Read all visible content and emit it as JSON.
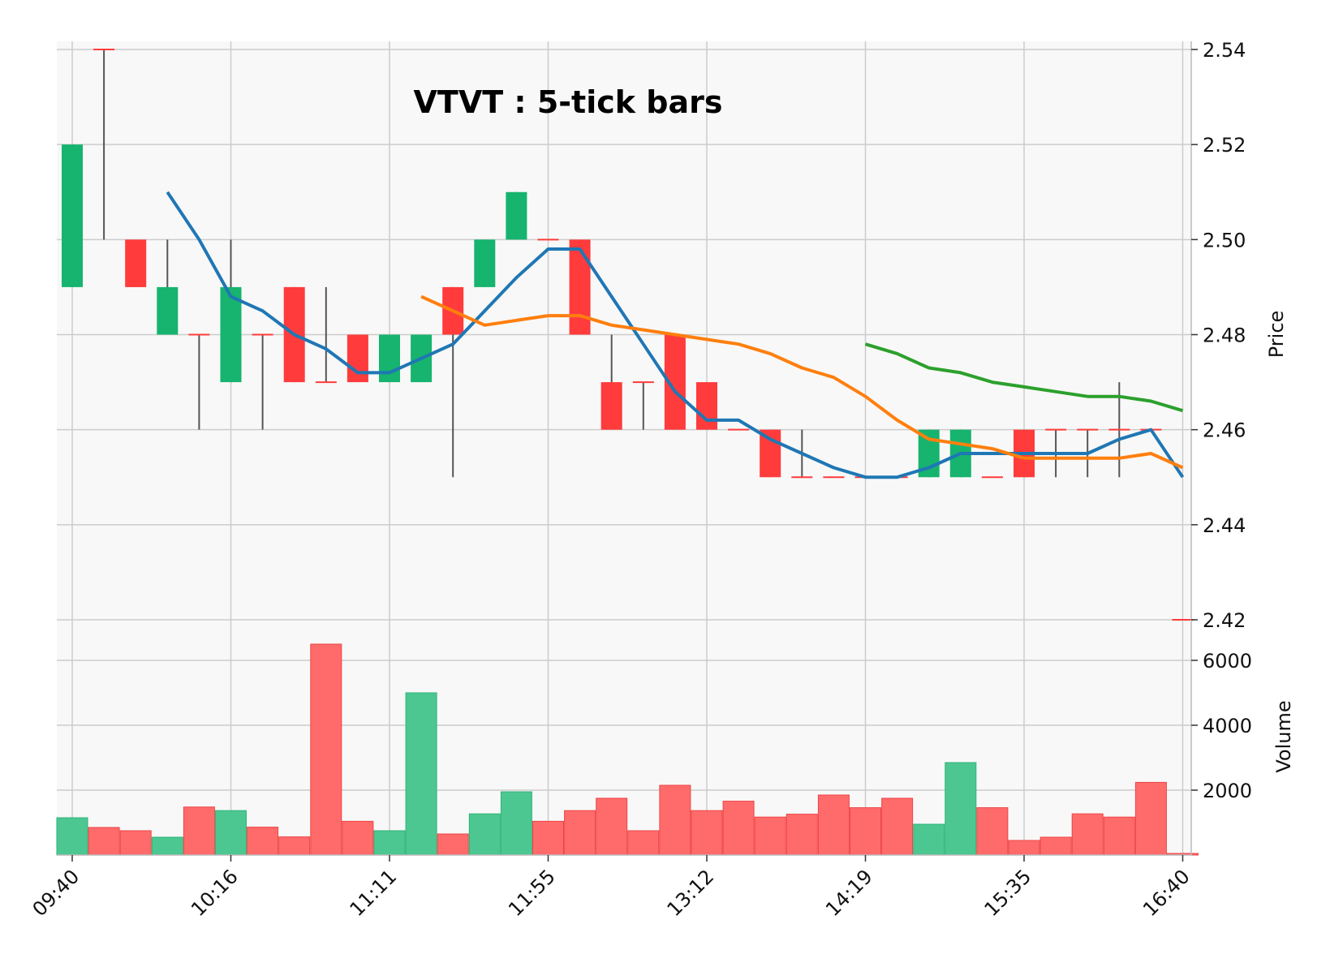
{
  "chart_data": {
    "type": "candlestick",
    "title": "VTVT : 5-tick bars",
    "price_axis": {
      "label": "Price",
      "ylim": [
        2.42,
        2.54
      ],
      "ticks": [
        2.42,
        2.44,
        2.46,
        2.48,
        2.5,
        2.52,
        2.54
      ],
      "tick_labels": [
        "2.42",
        "2.44",
        "2.46",
        "2.48",
        "2.50",
        "2.52",
        "2.54"
      ],
      "position": "right"
    },
    "volume_axis": {
      "label": "Volume",
      "ylim": [
        0,
        6800
      ],
      "ticks": [
        2000,
        4000,
        6000
      ],
      "tick_labels": [
        "2000",
        "4000",
        "6000"
      ],
      "position": "right"
    },
    "x_tick_labels": [
      {
        "bar": 0,
        "label": "09:40"
      },
      {
        "bar": 5,
        "label": "10:16"
      },
      {
        "bar": 10,
        "label": "11:11"
      },
      {
        "bar": 15,
        "label": "11:55"
      },
      {
        "bar": 20,
        "label": "13:12"
      },
      {
        "bar": 25,
        "label": "14:19"
      },
      {
        "bar": 30,
        "label": "15:35"
      },
      {
        "bar": 35,
        "label": "16:40"
      }
    ],
    "grid": true,
    "colors": {
      "up": "#16b46e",
      "down": "#ff3b3b",
      "volume_up": "#4dc791",
      "volume_down": "#ff6b6b",
      "wick": "#555555",
      "ma_short": "#1f77b4",
      "ma_mid": "#ff7f0e",
      "ma_long": "#2ca02c",
      "panel_bg": "#f8f8f8",
      "grid": "#cccccc"
    },
    "bars": [
      {
        "o": 2.49,
        "h": 2.52,
        "l": 2.49,
        "c": 2.52,
        "v": 1150
      },
      {
        "o": 2.54,
        "h": 2.54,
        "l": 2.5,
        "c": 2.54,
        "v": 850
      },
      {
        "o": 2.5,
        "h": 2.5,
        "l": 2.49,
        "c": 2.49,
        "v": 750
      },
      {
        "o": 2.48,
        "h": 2.5,
        "l": 2.48,
        "c": 2.49,
        "v": 550
      },
      {
        "o": 2.48,
        "h": 2.48,
        "l": 2.46,
        "c": 2.48,
        "v": 1480
      },
      {
        "o": 2.47,
        "h": 2.5,
        "l": 2.47,
        "c": 2.49,
        "v": 1370
      },
      {
        "o": 2.48,
        "h": 2.48,
        "l": 2.46,
        "c": 2.48,
        "v": 860
      },
      {
        "o": 2.49,
        "h": 2.49,
        "l": 2.47,
        "c": 2.47,
        "v": 560
      },
      {
        "o": 2.47,
        "h": 2.49,
        "l": 2.47,
        "c": 2.47,
        "v": 6500
      },
      {
        "o": 2.48,
        "h": 2.48,
        "l": 2.47,
        "c": 2.47,
        "v": 1040
      },
      {
        "o": 2.47,
        "h": 2.48,
        "l": 2.47,
        "c": 2.48,
        "v": 750
      },
      {
        "o": 2.47,
        "h": 2.48,
        "l": 2.47,
        "c": 2.48,
        "v": 5000
      },
      {
        "o": 2.49,
        "h": 2.49,
        "l": 2.45,
        "c": 2.48,
        "v": 650
      },
      {
        "o": 2.49,
        "h": 2.5,
        "l": 2.49,
        "c": 2.5,
        "v": 1270
      },
      {
        "o": 2.5,
        "h": 2.51,
        "l": 2.5,
        "c": 2.51,
        "v": 1950
      },
      {
        "o": 2.5,
        "h": 2.5,
        "l": 2.5,
        "c": 2.5,
        "v": 1040
      },
      {
        "o": 2.5,
        "h": 2.5,
        "l": 2.48,
        "c": 2.48,
        "v": 1370
      },
      {
        "o": 2.47,
        "h": 2.48,
        "l": 2.46,
        "c": 2.46,
        "v": 1750
      },
      {
        "o": 2.47,
        "h": 2.47,
        "l": 2.46,
        "c": 2.47,
        "v": 750
      },
      {
        "o": 2.48,
        "h": 2.48,
        "l": 2.46,
        "c": 2.46,
        "v": 2150
      },
      {
        "o": 2.47,
        "h": 2.47,
        "l": 2.46,
        "c": 2.46,
        "v": 1370
      },
      {
        "o": 2.46,
        "h": 2.46,
        "l": 2.46,
        "c": 2.46,
        "v": 1660
      },
      {
        "o": 2.46,
        "h": 2.46,
        "l": 2.45,
        "c": 2.45,
        "v": 1170
      },
      {
        "o": 2.45,
        "h": 2.46,
        "l": 2.45,
        "c": 2.45,
        "v": 1260
      },
      {
        "o": 2.45,
        "h": 2.45,
        "l": 2.45,
        "c": 2.45,
        "v": 1850
      },
      {
        "o": 2.45,
        "h": 2.45,
        "l": 2.45,
        "c": 2.45,
        "v": 1460
      },
      {
        "o": 2.45,
        "h": 2.45,
        "l": 2.45,
        "c": 2.45,
        "v": 1750
      },
      {
        "o": 2.45,
        "h": 2.46,
        "l": 2.45,
        "c": 2.46,
        "v": 950
      },
      {
        "o": 2.45,
        "h": 2.46,
        "l": 2.45,
        "c": 2.46,
        "v": 2850
      },
      {
        "o": 2.45,
        "h": 2.45,
        "l": 2.45,
        "c": 2.45,
        "v": 1460
      },
      {
        "o": 2.46,
        "h": 2.46,
        "l": 2.45,
        "c": 2.45,
        "v": 450
      },
      {
        "o": 2.46,
        "h": 2.46,
        "l": 2.45,
        "c": 2.46,
        "v": 550
      },
      {
        "o": 2.46,
        "h": 2.46,
        "l": 2.45,
        "c": 2.46,
        "v": 1270
      },
      {
        "o": 2.46,
        "h": 2.47,
        "l": 2.45,
        "c": 2.46,
        "v": 1170
      },
      {
        "o": 2.46,
        "h": 2.46,
        "l": 2.46,
        "c": 2.46,
        "v": 2240
      },
      {
        "o": 2.42,
        "h": 2.42,
        "l": 2.42,
        "c": 2.42,
        "v": 50
      }
    ],
    "moving_averages": [
      {
        "key": "ma_short",
        "start": 3,
        "values": [
          2.51,
          2.5,
          2.488,
          2.485,
          2.48,
          2.477,
          2.472,
          2.472,
          2.475,
          2.478,
          2.485,
          2.492,
          2.498,
          2.498,
          2.488,
          2.478,
          2.468,
          2.462,
          2.462,
          2.458,
          2.455,
          2.452,
          2.45,
          2.45,
          2.452,
          2.455,
          2.455,
          2.455,
          2.455,
          2.455,
          2.458,
          2.46,
          2.45
        ]
      },
      {
        "key": "ma_mid",
        "start": 11,
        "values": [
          2.488,
          2.485,
          2.482,
          2.483,
          2.484,
          2.484,
          2.482,
          2.481,
          2.48,
          2.479,
          2.478,
          2.476,
          2.473,
          2.471,
          2.467,
          2.462,
          2.458,
          2.457,
          2.456,
          2.454,
          2.454,
          2.454,
          2.454,
          2.455,
          2.452
        ]
      },
      {
        "key": "ma_long",
        "start": 25,
        "values": [
          2.478,
          2.476,
          2.473,
          2.472,
          2.47,
          2.469,
          2.468,
          2.467,
          2.467,
          2.466,
          2.464
        ]
      }
    ]
  }
}
